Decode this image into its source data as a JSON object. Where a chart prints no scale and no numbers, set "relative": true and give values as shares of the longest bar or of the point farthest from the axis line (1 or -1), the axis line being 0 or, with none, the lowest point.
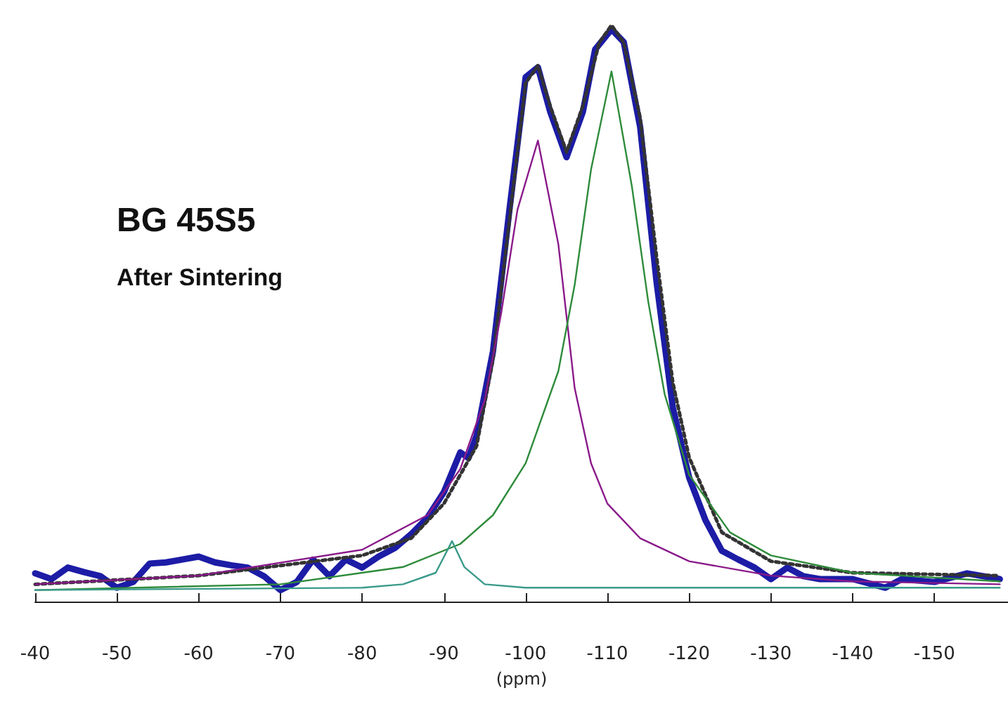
{
  "chart_data": {
    "type": "line",
    "relative": true,
    "title": "BG 45S5",
    "subtitle": "After Sintering",
    "xlabel": "(ppm)",
    "xlim": [
      -40,
      -159
    ],
    "xticks": [
      -40,
      -50,
      -60,
      -70,
      -80,
      -90,
      -100,
      -110,
      -120,
      -130,
      -140,
      -150
    ],
    "grid": false,
    "marker": "none",
    "tick_labels": "x",
    "series": [
      {
        "color": "#1c1ca6",
        "line_style": "solid",
        "x": [
          -40,
          -42,
          -44,
          -46,
          -48,
          -50,
          -52,
          -54,
          -56,
          -58,
          -60,
          -62,
          -64,
          -66,
          -68,
          -70,
          -72,
          -74,
          -76,
          -78,
          -80,
          -82,
          -84,
          -86,
          -88,
          -90,
          -92,
          -93,
          -94,
          -96,
          -98,
          -100,
          -101.5,
          -103,
          -105,
          -107,
          -108.5,
          -110.5,
          -112,
          -114,
          -116,
          -118,
          -120,
          -122,
          -124,
          -126,
          -128,
          -130,
          -132,
          -134,
          -136,
          -140,
          -144,
          -146,
          -150,
          -154,
          -158
        ],
        "values": [
          0.049,
          0.039,
          0.059,
          0.051,
          0.044,
          0.024,
          0.034,
          0.066,
          0.068,
          0.073,
          0.078,
          0.068,
          0.063,
          0.059,
          0.044,
          0.02,
          0.034,
          0.073,
          0.044,
          0.073,
          0.059,
          0.078,
          0.093,
          0.117,
          0.146,
          0.19,
          0.259,
          0.249,
          0.288,
          0.434,
          0.678,
          0.91,
          0.927,
          0.85,
          0.771,
          0.85,
          0.958,
          0.993,
          0.971,
          0.824,
          0.556,
          0.337,
          0.215,
          0.141,
          0.088,
          0.073,
          0.059,
          0.039,
          0.059,
          0.044,
          0.039,
          0.039,
          0.024,
          0.039,
          0.034,
          0.049,
          0.039
        ]
      },
      {
        "color": "#333333",
        "line_style": "dotted",
        "x": [
          -40,
          -60,
          -80,
          -86,
          -90,
          -94,
          -96,
          -98,
          -100,
          -101.5,
          -103,
          -105,
          -107,
          -109,
          -110.5,
          -112,
          -114,
          -116,
          -118,
          -120,
          -124,
          -130,
          -140,
          -158
        ],
        "values": [
          0.03,
          0.045,
          0.08,
          0.11,
          0.17,
          0.27,
          0.42,
          0.66,
          0.9,
          0.93,
          0.86,
          0.78,
          0.86,
          0.97,
          1.0,
          0.97,
          0.84,
          0.6,
          0.38,
          0.25,
          0.12,
          0.07,
          0.05,
          0.045
        ]
      },
      {
        "color": "#8a1a8a",
        "line_style": "solid",
        "x": [
          -40,
          -60,
          -80,
          -88,
          -92,
          -95,
          -97,
          -99,
          -101.5,
          -104,
          -106,
          -108,
          -110,
          -114,
          -120,
          -130,
          -140,
          -158
        ],
        "values": [
          0.03,
          0.045,
          0.09,
          0.15,
          0.23,
          0.35,
          0.5,
          0.68,
          0.8,
          0.62,
          0.37,
          0.24,
          0.17,
          0.11,
          0.07,
          0.045,
          0.035,
          0.03
        ]
      },
      {
        "color": "#2e8b3a",
        "line_style": "solid",
        "x": [
          -40,
          -70,
          -85,
          -92,
          -96,
          -100,
          -104,
          -106,
          -108,
          -110.5,
          -113,
          -115,
          -117,
          -120,
          -125,
          -130,
          -140,
          -158
        ],
        "values": [
          0.02,
          0.03,
          0.06,
          0.1,
          0.15,
          0.24,
          0.4,
          0.55,
          0.75,
          0.92,
          0.72,
          0.52,
          0.36,
          0.22,
          0.12,
          0.08,
          0.05,
          0.035
        ]
      },
      {
        "color": "#3a9a8a",
        "line_style": "solid",
        "x": [
          -40,
          -80,
          -85,
          -89,
          -91,
          -92.5,
          -95,
          -100,
          -158
        ],
        "values": [
          0.02,
          0.024,
          0.03,
          0.05,
          0.105,
          0.06,
          0.03,
          0.024,
          0.024
        ]
      }
    ]
  }
}
